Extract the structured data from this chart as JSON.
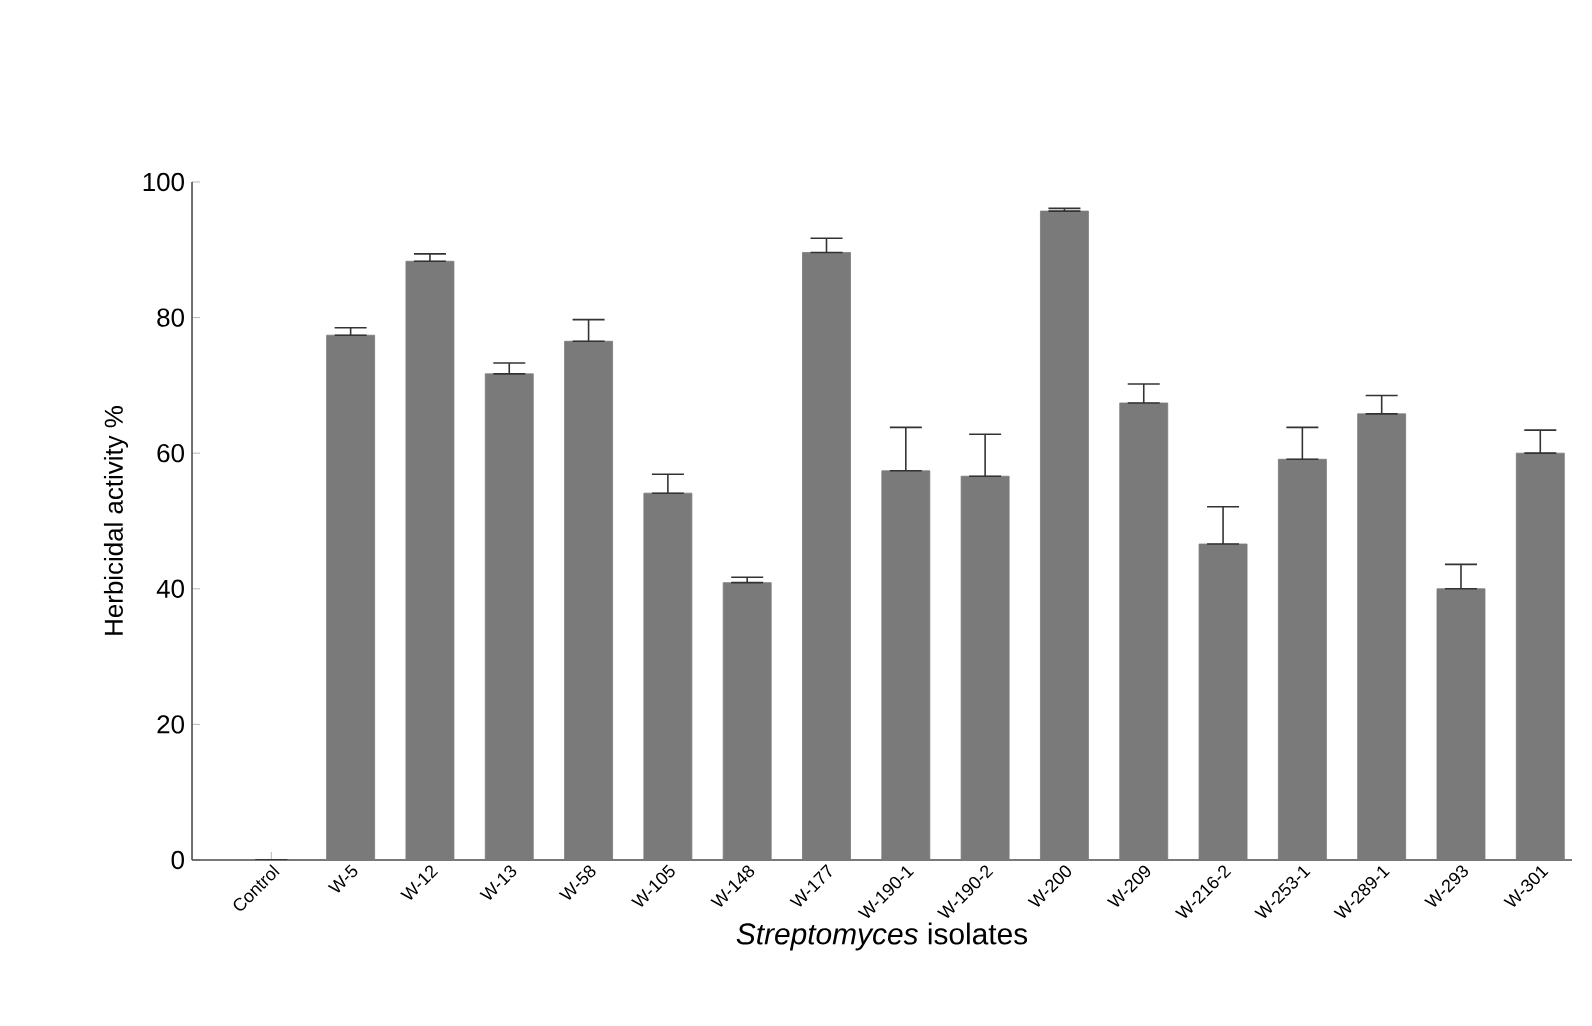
{
  "chart_data": {
    "type": "bar",
    "ylabel": "Herbicidal activity %",
    "xlabel": "*Streptomyces* isolates",
    "categories": [
      "Control",
      "W-5",
      "W-12",
      "W-13",
      "W-58",
      "W-105",
      "W-148",
      "W-177",
      "W-190-1",
      "W-190-2",
      "W-200",
      "W-209",
      "W-216-2",
      "W-253-1",
      "W-289-1",
      "W-293",
      "W-301"
    ],
    "values": [
      0,
      77.4,
      88.3,
      71.7,
      76.5,
      54.1,
      40.9,
      89.6,
      57.4,
      56.6,
      95.7,
      67.4,
      46.6,
      59.1,
      65.8,
      40.0,
      60.0
    ],
    "errors": [
      null,
      [
        77.4,
        78.5
      ],
      [
        88.3,
        89.4
      ],
      [
        71.7,
        73.3
      ],
      [
        76.5,
        79.7
      ],
      [
        54.1,
        56.9
      ],
      [
        40.9,
        41.7
      ],
      [
        89.6,
        91.7
      ],
      [
        57.4,
        63.8
      ],
      [
        56.6,
        62.8
      ],
      [
        95.7,
        96.1
      ],
      [
        67.4,
        70.2
      ],
      [
        46.6,
        52.1
      ],
      [
        59.1,
        63.8
      ],
      [
        65.8,
        68.5
      ],
      [
        40.0,
        43.6
      ],
      [
        60.0,
        63.4
      ]
    ],
    "color": "#7a7a7a",
    "ylim": [
      0,
      100
    ],
    "yticks": [
      0,
      20,
      40,
      60,
      80,
      100
    ],
    "grid": false
  }
}
